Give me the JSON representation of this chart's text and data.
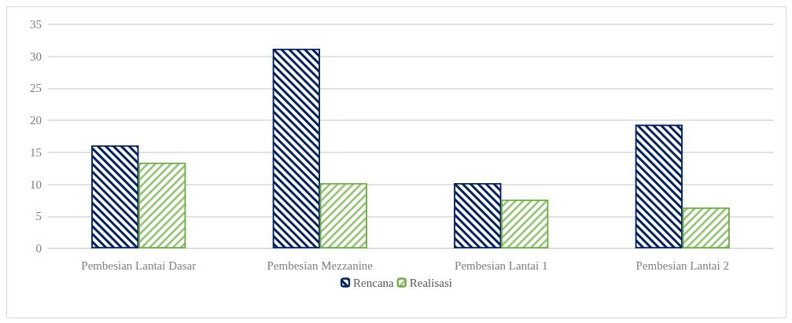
{
  "chart_data": {
    "type": "bar",
    "categories": [
      "Pembesian Lantai Dasar",
      "Pembesian Mezzanine",
      "Pembesian Lantai 1",
      "Pembesian Lantai 2"
    ],
    "series": [
      {
        "name": "Rencana",
        "color": "#002060",
        "values": [
          16.1,
          31.2,
          10.2,
          19.3
        ]
      },
      {
        "name": "Realisasi",
        "color": "#70ad47",
        "values": [
          13.4,
          10.2,
          7.6,
          6.4
        ]
      }
    ],
    "ylim": [
      0,
      35
    ],
    "yticks": [
      0,
      5,
      10,
      15,
      20,
      25,
      30,
      35
    ],
    "grid": "y",
    "legend": "bottom"
  }
}
